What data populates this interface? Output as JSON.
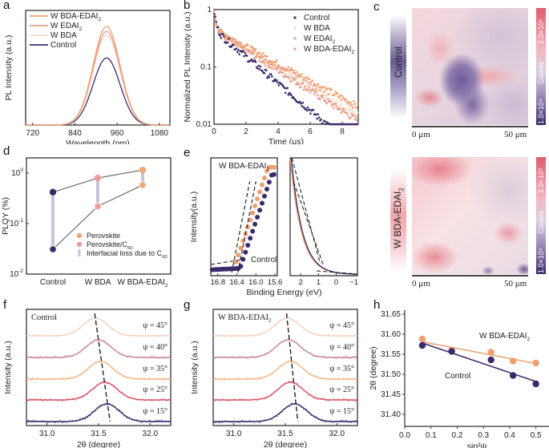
{
  "colors": {
    "control": "#3b2a6b",
    "w_bda": "#f3d9c9",
    "w_edai2": "#e8a08c",
    "w_bda_edai2": "#f0a070",
    "perovskite": "#f2a775",
    "perovskite_c60": "#ec9d97",
    "loss_bar": "#c9c3d8",
    "psi45": "#f6d3c3",
    "psi40": "#c98a9c",
    "psi35": "#f4b88a",
    "psi25": "#d9566a",
    "psi15": "#3b2a6b"
  },
  "panels": {
    "a": "a",
    "b": "b",
    "c": "c",
    "d": "d",
    "e": "e",
    "f": "f",
    "g": "g",
    "h": "h"
  },
  "chart_data": [
    {
      "id": "a",
      "type": "line",
      "xlabel": "Wavelength (nm)",
      "ylabel": "PL Intensity (a.u.)",
      "xlim": [
        700,
        1110
      ],
      "xticks": [
        "720",
        "840",
        "960",
        "1080"
      ],
      "xtick_values": [
        720,
        840,
        960,
        1080
      ],
      "peak_center_nm": 930,
      "peak_fwhm_nm": 90,
      "series": [
        {
          "name": "W BDA-EDAI2",
          "label": "W BDA-EDAI",
          "sub": "2",
          "peak": 1.0
        },
        {
          "name": "W EDAI2",
          "label": "W EDAI",
          "sub": "2",
          "peak": 0.95
        },
        {
          "name": "W BDA",
          "label": "W BDA",
          "sub": "",
          "peak": 0.91
        },
        {
          "name": "Control",
          "label": "Control",
          "sub": "",
          "peak": 0.68
        }
      ]
    },
    {
      "id": "b",
      "type": "scatter",
      "xlabel": "Time (μs)",
      "ylabel": "Normalized PL Intensity (a.u.)",
      "xlim": [
        0,
        9
      ],
      "ylim_log": [
        0.01,
        1
      ],
      "xticks": [
        "0",
        "2",
        "4",
        "6",
        "8"
      ],
      "xtick_values": [
        0,
        2,
        4,
        6,
        8
      ],
      "yticks": [
        "0.01",
        "0.1",
        "1"
      ],
      "ytick_values": [
        0.01,
        0.1,
        1
      ],
      "series": [
        {
          "name": "Control",
          "label": "Control",
          "sub": "",
          "end_value": 0.012,
          "tau": 1.85
        },
        {
          "name": "W BDA",
          "label": "W BDA",
          "sub": "",
          "end_value": 0.03,
          "tau": 2.6
        },
        {
          "name": "W EDAI2",
          "label": "W EDAI",
          "sub": "2",
          "end_value": 0.025,
          "tau": 2.45
        },
        {
          "name": "W BDA-EDAI2",
          "label": "W BDA-EDAI",
          "sub": "2",
          "end_value": 0.04,
          "tau": 2.9
        }
      ]
    },
    {
      "id": "d",
      "type": "scatter",
      "ylabel": "PLQY (%)",
      "categories": [
        "Control",
        "W BDA",
        "W BDA-EDAI2"
      ],
      "category_labels": [
        [
          "Control",
          ""
        ],
        [
          "W BDA",
          ""
        ],
        [
          "W BDA-EDAI",
          "2"
        ]
      ],
      "ylim_log": [
        0.01,
        2
      ],
      "yticks": [
        [
          "10",
          "0"
        ],
        [
          "10",
          "-1"
        ],
        [
          "10",
          "-2"
        ]
      ],
      "ytick_values": [
        1,
        0.1,
        0.01
      ],
      "series": [
        {
          "name": "Perovskite",
          "values": [
            0.42,
            0.8,
            1.15
          ]
        },
        {
          "name": "Perovskite/C60",
          "values": [
            0.031,
            0.22,
            0.58
          ]
        }
      ],
      "legend": [
        {
          "label": "Perovskite",
          "sub": ""
        },
        {
          "label": "Perovskite/C",
          "sub": "60"
        },
        {
          "label": "Interfacial loss due to C",
          "sub": "60"
        }
      ]
    },
    {
      "id": "e",
      "type": "scatter",
      "xlabel": "Binding Energy (eV)",
      "ylabel": "Intensity(a.u.)",
      "left_xlim": [
        16.95,
        15.55
      ],
      "left_xticks": [
        "16.8",
        "16.4",
        "16.0",
        "15.6"
      ],
      "left_xtick_values": [
        16.8,
        16.4,
        16.0,
        15.6
      ],
      "right_xlim": [
        2.6,
        -1.2
      ],
      "right_xticks": [
        "2",
        "1",
        "0",
        "−1"
      ],
      "right_xtick_values": [
        2,
        1,
        0,
        -1
      ],
      "annotation_top": "W BDA-EDAI",
      "annotation_top_sub": "2",
      "annotation_bottom": "Control",
      "series": [
        {
          "name": "W BDA-EDAI2",
          "cutoff_eV": 16.45
        },
        {
          "name": "Control",
          "cutoff_eV": 16.32
        }
      ]
    },
    {
      "id": "f",
      "type": "line",
      "title": "Control",
      "xlabel": "2θ (degree)",
      "ylabel": "Intensity (a.u.)",
      "xlim": [
        30.8,
        32.2
      ],
      "xticks": [
        "31.0",
        "31.5",
        "32.0"
      ],
      "xtick_values": [
        31.0,
        31.5,
        32.0
      ],
      "series": [
        {
          "name": "ψ = 45°",
          "psi": 45,
          "peak": 31.47
        },
        {
          "name": "ψ = 40°",
          "psi": 40,
          "peak": 31.5
        },
        {
          "name": "ψ = 35°",
          "psi": 35,
          "peak": 31.52
        },
        {
          "name": "ψ = 25°",
          "psi": 25,
          "peak": 31.56
        },
        {
          "name": "ψ = 15°",
          "psi": 15,
          "peak": 31.58
        }
      ]
    },
    {
      "id": "g",
      "type": "line",
      "title": "W BDA-EDAI",
      "title_sub": "2",
      "xlabel": "2θ (degree)",
      "ylabel": "Intensity (a.u.)",
      "xlim": [
        30.8,
        32.2
      ],
      "xticks": [
        "31.0",
        "31.5",
        "32.0"
      ],
      "xtick_values": [
        31.0,
        31.5,
        32.0
      ],
      "series": [
        {
          "name": "ψ = 45°",
          "psi": 45,
          "peak": 31.52
        },
        {
          "name": "ψ = 40°",
          "psi": 40,
          "peak": 31.53
        },
        {
          "name": "ψ = 35°",
          "psi": 35,
          "peak": 31.55
        },
        {
          "name": "ψ = 25°",
          "psi": 25,
          "peak": 31.55
        },
        {
          "name": "ψ = 15°",
          "psi": 15,
          "peak": 31.59
        }
      ]
    },
    {
      "id": "h",
      "type": "scatter",
      "xlabel": "sin²ψ",
      "ylabel": "2θ (degree)",
      "xlim": [
        0.0,
        0.55
      ],
      "ylim": [
        31.37,
        31.66
      ],
      "xticks": [
        "0.0",
        "0.1",
        "0.2",
        "0.3",
        "0.4",
        "0.5"
      ],
      "xtick_values": [
        0.0,
        0.1,
        0.2,
        0.3,
        0.4,
        0.5
      ],
      "yticks": [
        "31.40",
        "31.45",
        "31.50",
        "31.55",
        "31.60",
        "31.65"
      ],
      "ytick_values": [
        31.4,
        31.45,
        31.5,
        31.55,
        31.6,
        31.65
      ],
      "series": [
        {
          "name": "W BDA-EDAI2",
          "label": "W BDA-EDAI",
          "sub": "2",
          "x": [
            0.067,
            0.179,
            0.329,
            0.413,
            0.5
          ],
          "y": [
            31.588,
            31.56,
            31.555,
            31.533,
            31.528
          ],
          "fit": [
            31.581,
            31.527
          ]
        },
        {
          "name": "Control",
          "label": "Control",
          "sub": "",
          "x": [
            0.067,
            0.179,
            0.329,
            0.413,
            0.5
          ],
          "y": [
            31.572,
            31.557,
            31.536,
            31.497,
            31.476
          ],
          "fit": [
            31.578,
            31.482
          ]
        }
      ]
    }
  ],
  "maps": {
    "colorbar_top": "2.0×10⁵",
    "colorbar_mid": "Counts",
    "colorbar_bottom": "1.0×10⁴",
    "scale_start": "0 μm",
    "scale_end": "50 μm",
    "top_label": "Control",
    "bottom_label": "W BDA-EDAI",
    "bottom_label_sub": "2"
  }
}
